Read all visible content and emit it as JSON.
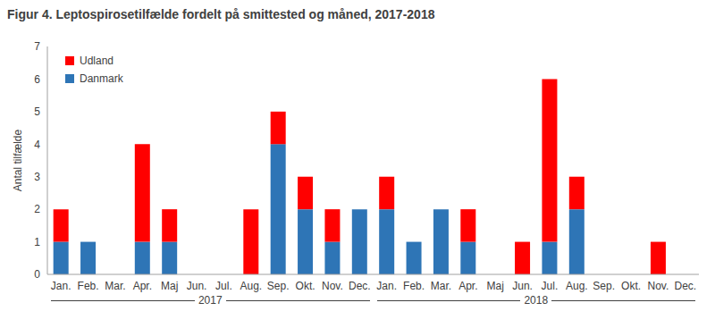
{
  "chart_data": {
    "type": "bar",
    "title": "Figur 4. Leptospirosetilfælde fordelt på smittested og måned, 2017-2018",
    "y_label": "Antal tilfælde",
    "categories": [
      "Jan.",
      "Feb.",
      "Mar.",
      "Apr.",
      "Maj",
      "Jun.",
      "Jul.",
      "Aug.",
      "Sep.",
      "Okt.",
      "Nov.",
      "Dec.",
      "Jan.",
      "Feb.",
      "Mar.",
      "Apr.",
      "Maj",
      "Jun.",
      "Jul.",
      "Aug.",
      "Sep.",
      "Okt.",
      "Nov.",
      "Dec."
    ],
    "groups": [
      "2017",
      "2018"
    ],
    "series": [
      {
        "name": "Danmark",
        "color": "#2e75b6",
        "values": [
          1,
          1,
          0,
          1,
          1,
          0,
          0,
          0,
          4,
          2,
          1,
          2,
          2,
          1,
          2,
          1,
          0,
          0,
          1,
          2,
          0,
          0,
          0,
          0
        ]
      },
      {
        "name": "Udland",
        "color": "#ff0000",
        "values": [
          1,
          0,
          0,
          3,
          1,
          0,
          0,
          2,
          1,
          1,
          1,
          0,
          1,
          0,
          0,
          1,
          0,
          1,
          5,
          1,
          0,
          0,
          1,
          0
        ]
      }
    ],
    "stacked": true,
    "ylim": [
      0,
      7
    ],
    "yticks": [
      0,
      1,
      2,
      3,
      4,
      5,
      6,
      7
    ],
    "grid": false,
    "legend": "upper left"
  }
}
